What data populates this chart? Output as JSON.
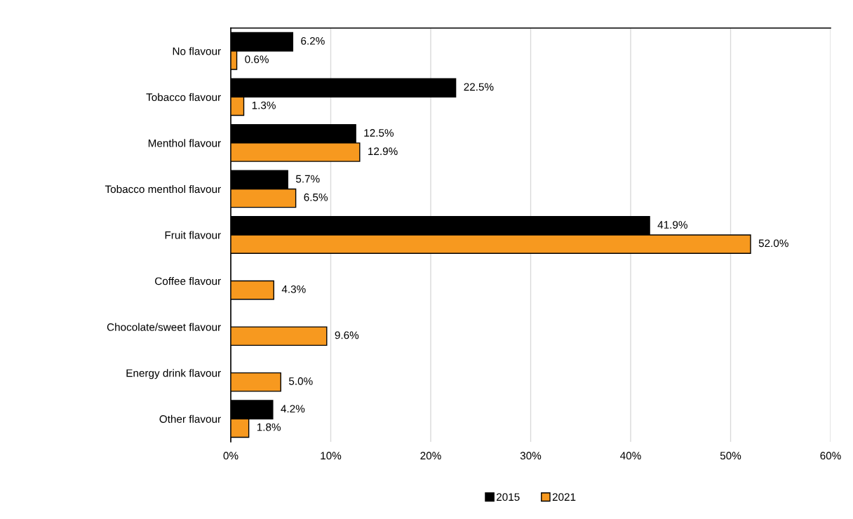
{
  "chart_data": {
    "type": "bar",
    "orientation": "horizontal",
    "categories": [
      "No flavour",
      "Tobacco flavour",
      "Menthol flavour",
      "Tobacco menthol flavour",
      "Fruit flavour",
      "Coffee flavour",
      "Chocolate/sweet flavour",
      "Energy drink flavour",
      "Other flavour"
    ],
    "series": [
      {
        "name": "2015",
        "color": "#000000",
        "values": [
          6.2,
          22.5,
          12.5,
          5.7,
          41.9,
          null,
          null,
          null,
          4.2
        ],
        "value_labels": [
          "6.2%",
          "22.5%",
          "12.5%",
          "5.7%",
          "41.9%",
          null,
          null,
          null,
          "4.2%"
        ]
      },
      {
        "name": "2021",
        "color": "#f7991f",
        "values": [
          0.6,
          1.3,
          12.9,
          6.5,
          52.0,
          4.3,
          9.6,
          5.0,
          1.8
        ],
        "value_labels": [
          "0.6%",
          "1.3%",
          "12.9%",
          "6.5%",
          "52.0%",
          "4.3%",
          "9.6%",
          "5.0%",
          "1.8%"
        ]
      }
    ],
    "xlim": [
      0,
      60
    ],
    "xticks": [
      {
        "value": 0,
        "label": "0%"
      },
      {
        "value": 10,
        "label": "10%"
      },
      {
        "value": 20,
        "label": "20%"
      },
      {
        "value": 30,
        "label": "30%"
      },
      {
        "value": 40,
        "label": "40%"
      },
      {
        "value": 50,
        "label": "50%"
      },
      {
        "value": 60,
        "label": "60%"
      }
    ],
    "grid": "x",
    "legend": "bottom"
  }
}
